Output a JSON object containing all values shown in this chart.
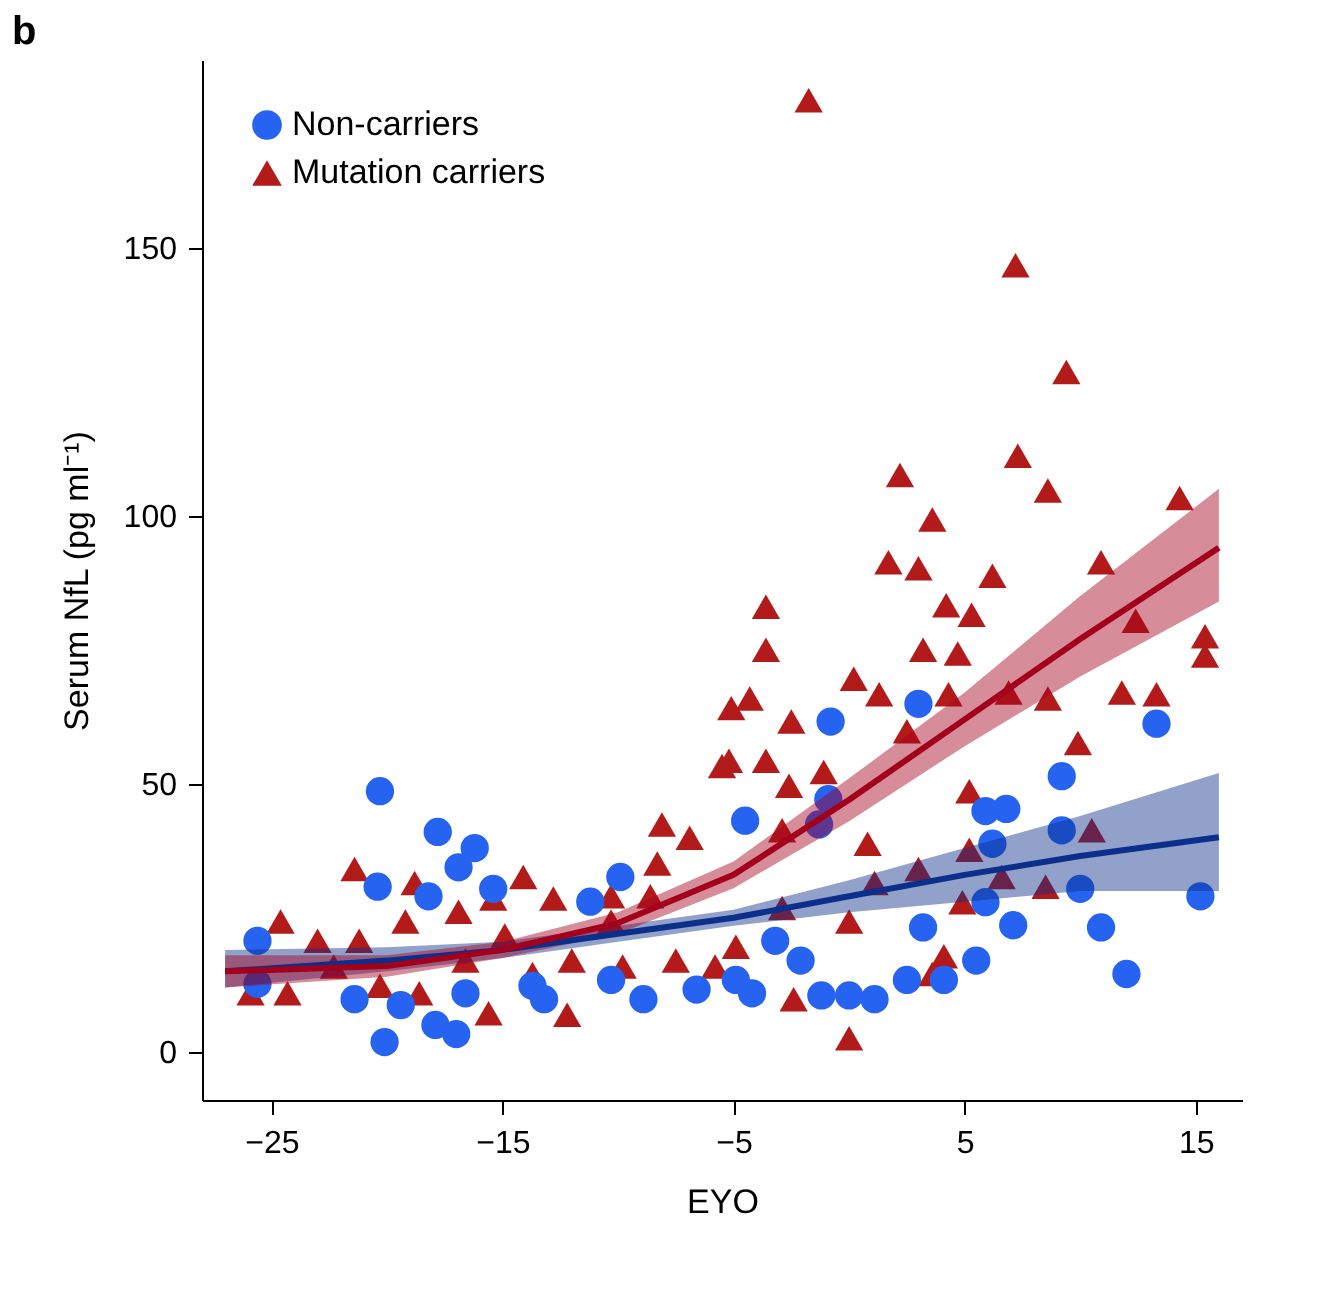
{
  "chart_data": {
    "type": "scatter",
    "title": "b",
    "xlabel": "EYO",
    "ylabel": "Serum NfL (pg ml⁻¹)",
    "xlim": [
      -28,
      17
    ],
    "ylim": [
      -9,
      185
    ],
    "xticks": [
      -25,
      -15,
      -5,
      5,
      15
    ],
    "yticks": [
      0,
      50,
      100,
      150
    ],
    "grid": false,
    "legend": "top left",
    "series": [
      {
        "name": "Non-carriers",
        "marker": "circle",
        "color": "#2563f0",
        "x": [
          -20.3,
          -17.8,
          -16.2,
          -16.9,
          -20.4,
          -18.2,
          -25.6,
          -25.6,
          -21.4,
          -19.4,
          -20.1,
          -17.9,
          -17,
          -15.4,
          -11.2,
          -9.9,
          -13.7,
          -10.3,
          -8.9,
          -6.6,
          -16.6,
          -13.2,
          3,
          13.3,
          9.2,
          9.2,
          6.8,
          5.9,
          6.2,
          10,
          15.2,
          10.9,
          12,
          7.1,
          3.2,
          5.5,
          2.5,
          4.1,
          1.1,
          0,
          -1.2,
          -4.2,
          -0.8,
          -0.9,
          -4.5,
          -1.3,
          5.9,
          -2.1,
          -4.9,
          -3.2
        ],
        "values": [
          48.6,
          41,
          38,
          34.4,
          30.8,
          29,
          20.7,
          12.7,
          9.8,
          8.7,
          1.8,
          5,
          3.3,
          30.4,
          28,
          32.6,
          12.3,
          13.4,
          9.8,
          11.6,
          10.9,
          9.8,
          64.9,
          61.2,
          51.4,
          41.3,
          45.3,
          44.9,
          38.8,
          30.4,
          29,
          23.2,
          14.5,
          23.6,
          23.2,
          17,
          13.4,
          13.4,
          9.8,
          10.5,
          10.5,
          10.9,
          61.6,
          47.1,
          43.1,
          42.4,
          27.9,
          17,
          13.4,
          20.7
        ]
      },
      {
        "name": "Mutation carriers",
        "marker": "triangle",
        "color": "#b31b1b",
        "x": [
          -1.75,
          7.2,
          9.4,
          2.2,
          7.3,
          8.6,
          3.6,
          14.3,
          1.7,
          3,
          10.9,
          6.2,
          -3.6,
          -3.6,
          -4.3,
          -2.5,
          0.2,
          1.3,
          3.2,
          4.7,
          4.3,
          4.2,
          5.3,
          6.9,
          8.6,
          12.4,
          15.4,
          15.4,
          11.8,
          13.3,
          9.9,
          10.5,
          -5.2,
          -3.6,
          -1.1,
          2.5,
          5.2,
          -2.6,
          3,
          6.6,
          8.5,
          5.2,
          4.9,
          -2.9,
          0.8,
          4.1,
          3.6,
          -2.4,
          0,
          1.1,
          0,
          -2.9,
          -4.9,
          -21.4,
          -18.8,
          -14.1,
          -24.6,
          -19.2,
          -16.9,
          -15.4,
          -12.8,
          -25.9,
          -24.3,
          -23,
          -21.2,
          -20.3,
          -18.6,
          -15.6,
          -12.2,
          -14.9,
          -10.3,
          -8.1,
          -6.9,
          -8.3,
          -5.5,
          -5.1,
          -12,
          -9.8,
          -7.5,
          -5.8,
          -10.3,
          -8.6,
          -22.3,
          -16.6,
          -13.7
        ],
        "values": [
          177.5,
          146.7,
          126.8,
          107.6,
          111.2,
          104.7,
          99.3,
          103.3,
          91.3,
          90.2,
          91.3,
          88.8,
          83,
          75,
          65.9,
          61.6,
          69.6,
          66.7,
          75,
          74.3,
          66.7,
          83.3,
          81.5,
          67,
          65.9,
          80.4,
          77.5,
          73.9,
          67,
          66.7,
          57.6,
          41.3,
          54.3,
          54.3,
          52.2,
          59.8,
          48.6,
          49.6,
          34.1,
          32.6,
          30.8,
          37.7,
          27.9,
          41.3,
          38.8,
          17.8,
          14.5,
          9.8,
          2.5,
          31.5,
          24.3,
          26.8,
          19.6,
          34.1,
          31.5,
          32.6,
          24.3,
          24.3,
          26.1,
          28.6,
          28.6,
          10.9,
          10.9,
          20.7,
          20.7,
          12.3,
          10.9,
          7.2,
          6.9,
          21.7,
          24.3,
          42.4,
          39.9,
          35.1,
          53.3,
          64.1,
          17,
          15.9,
          17,
          15.9,
          29,
          29,
          15.9,
          17,
          14.5
        ]
      },
      {
        "type": "line",
        "color": "#0b2f8a",
        "x": [
          -27,
          -20,
          -15,
          -10,
          -5,
          0,
          5,
          10,
          16
        ],
        "values": [
          15,
          17,
          19,
          22,
          25,
          29,
          33,
          36.5,
          40
        ],
        "lower": [
          12,
          15,
          17.5,
          20.5,
          23.5,
          26,
          28,
          30,
          30
        ],
        "upper": [
          19,
          19.5,
          20.5,
          23.5,
          26.5,
          32,
          38,
          44,
          52
        ]
      },
      {
        "type": "line",
        "color": "#a3001c",
        "x": [
          -27,
          -20,
          -15,
          -10,
          -5,
          0,
          5,
          10,
          16
        ],
        "values": [
          15,
          16,
          19,
          24,
          33,
          47,
          62,
          77,
          94
        ],
        "lower": [
          12,
          14,
          17.5,
          22,
          30.5,
          43,
          57,
          70,
          84
        ],
        "upper": [
          18,
          18,
          20.5,
          26,
          35.5,
          51,
          67,
          85,
          105
        ]
      }
    ]
  }
}
